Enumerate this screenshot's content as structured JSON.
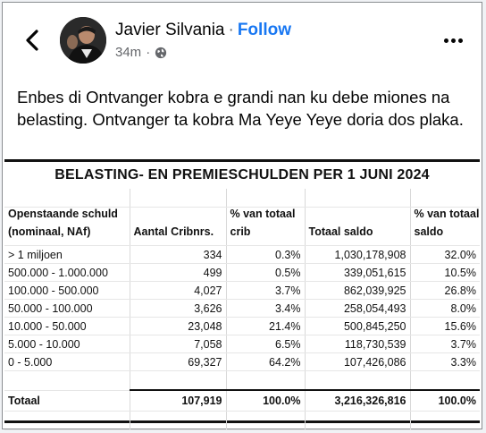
{
  "post": {
    "author_name": "Javier Silvania",
    "follow_label": "Follow",
    "time": "34m",
    "privacy_icon": "globe-icon",
    "text": "Enbes di Ontvanger kobra e grandi nan ku debe miones na belasting. Ontvanger ta kobra Ma Yeye Yeye doria dos plaka."
  },
  "nav": {
    "back_icon": "chevron-left-icon",
    "more_icon": "more-options-icon"
  },
  "table": {
    "title": "BELASTING- EN PREMIESCHULDEN PER 1 JUNI 2024",
    "headers": {
      "col1_line1": "Openstaande schuld",
      "col1_line2": "(nominaal, NAf)",
      "col2": "Aantal Cribnrs.",
      "col3_line1": "% van totaal",
      "col3_line2": "crib",
      "col4": "Totaal saldo",
      "col5_line1": "% van totaal",
      "col5_line2": "saldo"
    },
    "rows": [
      {
        "range": "> 1 miljoen",
        "count": "334",
        "pct_crib": "0.3%",
        "saldo": "1,030,178,908",
        "pct_saldo": "32.0%"
      },
      {
        "range": "500.000 - 1.000.000",
        "count": "499",
        "pct_crib": "0.5%",
        "saldo": "339,051,615",
        "pct_saldo": "10.5%"
      },
      {
        "range": "100.000 - 500.000",
        "count": "4,027",
        "pct_crib": "3.7%",
        "saldo": "862,039,925",
        "pct_saldo": "26.8%"
      },
      {
        "range": "50.000 - 100.000",
        "count": "3,626",
        "pct_crib": "3.4%",
        "saldo": "258,054,493",
        "pct_saldo": "8.0%"
      },
      {
        "range": "10.000 - 50.000",
        "count": "23,048",
        "pct_crib": "21.4%",
        "saldo": "500,845,250",
        "pct_saldo": "15.6%"
      },
      {
        "range": "5.000 - 10.000",
        "count": "7,058",
        "pct_crib": "6.5%",
        "saldo": "118,730,539",
        "pct_saldo": "3.7%"
      },
      {
        "range": "0 - 5.000",
        "count": "69,327",
        "pct_crib": "64.2%",
        "saldo": "107,426,086",
        "pct_saldo": "3.3%"
      }
    ],
    "total": {
      "label": "Totaal",
      "count": "107,919",
      "pct_crib": "100.0%",
      "saldo": "3,216,326,816",
      "pct_saldo": "100.0%"
    }
  }
}
